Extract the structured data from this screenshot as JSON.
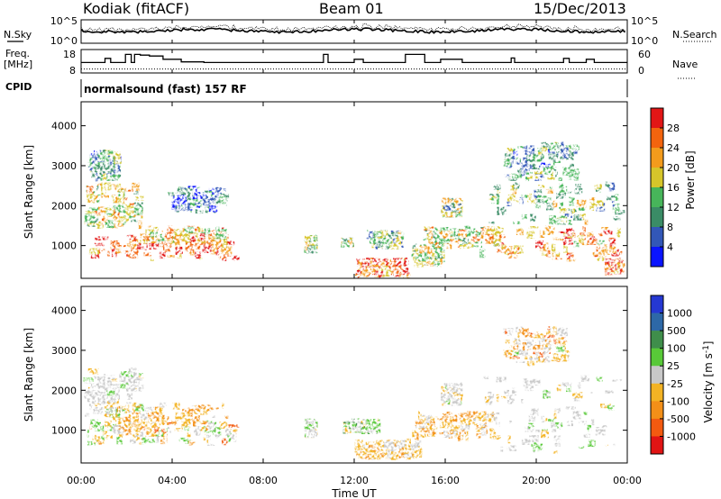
{
  "header": {
    "station": "Kodiak (fitACF)",
    "beam": "Beam 01",
    "date": "15/Dec/2013"
  },
  "labels": {
    "nsky": "N.Sky",
    "nsearch": "N.Search",
    "freq_line1": "Freq.",
    "freq_line2": "[MHz]",
    "nave": "Nave",
    "cpid_label": "CPID",
    "cpid_value": "normalsound (fast) 157 RF"
  },
  "chart_data": [
    {
      "type": "line",
      "name": "noise-panel",
      "ylabel_left": "N.Sky",
      "ylabel_right": "N.Search",
      "yticks_left": [
        "10^5",
        "10^0"
      ],
      "yticks_right": [
        "10^5",
        "10^0"
      ],
      "xlim": [
        0,
        24
      ]
    },
    {
      "type": "line",
      "name": "frequency-panel",
      "ylabel_left": "Freq. [MHz]",
      "ylabel_right": "Nave",
      "yticks_left": [
        18,
        8
      ],
      "yticks_right": [
        60,
        0
      ],
      "xlim": [
        0,
        24
      ],
      "freq_steps": [
        [
          0,
          12.2
        ],
        [
          1.05,
          14.8
        ],
        [
          1.3,
          12.2
        ],
        [
          1.95,
          17.2
        ],
        [
          2.2,
          12.2
        ],
        [
          2.35,
          17.2
        ],
        [
          2.6,
          16.8
        ],
        [
          3.0,
          16.2
        ],
        [
          3.6,
          14.2
        ],
        [
          4.4,
          12.6
        ],
        [
          5.4,
          12.2
        ],
        [
          7.2,
          12.2
        ],
        [
          7.6,
          12.2
        ],
        [
          9.8,
          12.2
        ],
        [
          10.3,
          12.2
        ],
        [
          10.65,
          17.2
        ],
        [
          10.85,
          12.2
        ],
        [
          11.0,
          12.2
        ],
        [
          11.6,
          12.2
        ],
        [
          12.0,
          14.2
        ],
        [
          12.4,
          12.2
        ],
        [
          14.25,
          17.2
        ],
        [
          15.1,
          12.2
        ],
        [
          15.3,
          12.2
        ],
        [
          15.8,
          14.2
        ],
        [
          16.75,
          12.2
        ],
        [
          18.7,
          12.2
        ],
        [
          18.9,
          15.0
        ],
        [
          19.05,
          12.2
        ],
        [
          21.2,
          14.8
        ],
        [
          21.45,
          12.2
        ],
        [
          22.2,
          14.2
        ],
        [
          22.55,
          12.2
        ],
        [
          23.1,
          12.2
        ]
      ],
      "nave_level": 10
    },
    {
      "type": "heatmap",
      "name": "power-panel",
      "xlabel": "",
      "ylabel": "Slant Range [km]",
      "xlim": [
        0,
        24
      ],
      "ylim": [
        180,
        4600
      ],
      "yticks": [
        1000,
        2000,
        3000,
        4000
      ],
      "colorbar": {
        "label": "Power [dB]",
        "ticks": [
          4,
          8,
          12,
          16,
          20,
          24,
          28
        ],
        "range": [
          0,
          30
        ],
        "colors": [
          "#0a14ff",
          "#3257b8",
          "#3a8c66",
          "#47b55a",
          "#d6c52a",
          "#f39b1c",
          "#f3640e",
          "#e21616"
        ]
      },
      "blobs": [
        {
          "t": [
            0.2,
            7.0
          ],
          "r": [
            600,
            1300
          ],
          "level": 0.82
        },
        {
          "t": [
            0.1,
            2.8
          ],
          "r": [
            1400,
            2600
          ],
          "level": 0.55
        },
        {
          "t": [
            0.3,
            1.8
          ],
          "r": [
            2600,
            3400
          ],
          "level": 0.35
        },
        {
          "t": [
            2.5,
            6.5
          ],
          "r": [
            1000,
            1500
          ],
          "level": 0.65
        },
        {
          "t": [
            3.8,
            6.5
          ],
          "r": [
            1800,
            2500
          ],
          "level": 0.25
        },
        {
          "t": [
            9.8,
            10.4
          ],
          "r": [
            800,
            1300
          ],
          "level": 0.45
        },
        {
          "t": [
            11.4,
            12.0
          ],
          "r": [
            950,
            1200
          ],
          "level": 0.5
        },
        {
          "t": [
            12.0,
            14.5
          ],
          "r": [
            180,
            700
          ],
          "level": 0.78
        },
        {
          "t": [
            12.5,
            14.2
          ],
          "r": [
            900,
            1400
          ],
          "level": 0.4
        },
        {
          "t": [
            14.5,
            16.0
          ],
          "r": [
            450,
            1100
          ],
          "level": 0.5
        },
        {
          "t": [
            15.0,
            18.5
          ],
          "r": [
            900,
            1500
          ],
          "level": 0.6
        },
        {
          "t": [
            15.8,
            16.8
          ],
          "r": [
            1700,
            2200
          ],
          "level": 0.45
        },
        {
          "t": [
            17.5,
            23.9
          ],
          "r": [
            600,
            1500
          ],
          "level": 0.7
        },
        {
          "t": [
            17.8,
            23.9
          ],
          "r": [
            1500,
            2600
          ],
          "level": 0.45
        },
        {
          "t": [
            18.5,
            22.0
          ],
          "r": [
            2600,
            3600
          ],
          "level": 0.35
        },
        {
          "t": [
            23.0,
            23.9
          ],
          "r": [
            250,
            700
          ],
          "level": 0.8
        }
      ]
    },
    {
      "type": "heatmap",
      "name": "velocity-panel",
      "xlabel": "Time UT",
      "ylabel": "Slant Range [km]",
      "xlim": [
        0,
        24
      ],
      "ylim": [
        180,
        4600
      ],
      "yticks": [
        1000,
        2000,
        3000,
        4000
      ],
      "xticks": [
        "00:00",
        "04:00",
        "08:00",
        "12:00",
        "16:00",
        "20:00",
        "00:00"
      ],
      "colorbar": {
        "label": "Velocity [m s",
        "label_sup": "-1",
        "label_end": "]",
        "ticks": [
          1000,
          500,
          100,
          25,
          -25,
          -100,
          -500,
          -1000
        ],
        "colors": [
          "#2538d2",
          "#2d68a7",
          "#3f8e4b",
          "#58c938",
          "#c8c8c8",
          "#f3b324",
          "#f38f18",
          "#f35a10",
          "#e11414"
        ]
      },
      "blobs": [
        {
          "t": [
            0.2,
            7.0
          ],
          "r": [
            600,
            1300
          ],
          "kind": "mixed-orange"
        },
        {
          "t": [
            0.1,
            2.8
          ],
          "r": [
            1300,
            2600
          ],
          "kind": "grey"
        },
        {
          "t": [
            1.0,
            6.5
          ],
          "r": [
            1000,
            1700
          ],
          "kind": "orange"
        },
        {
          "t": [
            9.8,
            10.4
          ],
          "r": [
            800,
            1300
          ],
          "kind": "grey"
        },
        {
          "t": [
            11.5,
            13.2
          ],
          "r": [
            900,
            1300
          ],
          "kind": "green"
        },
        {
          "t": [
            12.0,
            15.0
          ],
          "r": [
            250,
            800
          ],
          "kind": "orange"
        },
        {
          "t": [
            14.5,
            18.5
          ],
          "r": [
            700,
            1500
          ],
          "kind": "orange"
        },
        {
          "t": [
            15.8,
            16.8
          ],
          "r": [
            1600,
            2200
          ],
          "kind": "grey"
        },
        {
          "t": [
            17.5,
            23.9
          ],
          "r": [
            400,
            2400
          ],
          "kind": "grey"
        },
        {
          "t": [
            18.5,
            21.5
          ],
          "r": [
            2600,
            3600
          ],
          "kind": "mixed-orange"
        }
      ]
    }
  ]
}
